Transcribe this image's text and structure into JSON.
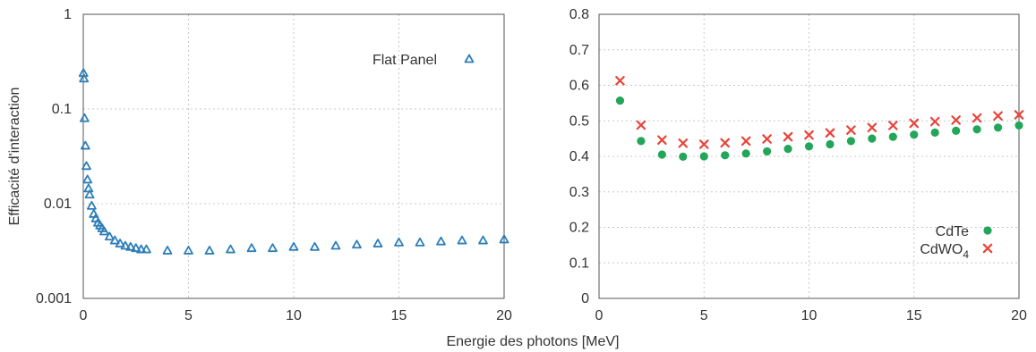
{
  "colors": {
    "flat_panel": "#2e7fb8",
    "cdte": "#23a55a",
    "cdwo4": "#e8443a"
  },
  "chart_data": [
    {
      "type": "scatter",
      "title": "",
      "xlabel": "Energie des photons [MeV]",
      "ylabel": "Efficacité d'interaction",
      "xlim": [
        0,
        20
      ],
      "ylim": [
        0.001,
        1
      ],
      "yscale": "log",
      "grid": true,
      "legend_position": "top-right",
      "x_ticks": [
        "0",
        "5",
        "10",
        "15",
        "20"
      ],
      "y_ticks": [
        "0.001",
        "0.01",
        "0.1",
        "1"
      ],
      "series": [
        {
          "name": "Flat Panel",
          "marker": "triangle",
          "x": [
            0.01,
            0.03,
            0.06,
            0.1,
            0.15,
            0.2,
            0.25,
            0.3,
            0.4,
            0.5,
            0.6,
            0.7,
            0.8,
            0.9,
            1,
            1.25,
            1.5,
            1.75,
            2,
            2.25,
            2.5,
            2.75,
            3,
            4,
            5,
            6,
            7,
            8,
            9,
            10,
            11,
            12,
            13,
            14,
            15,
            16,
            17,
            18,
            19,
            20
          ],
          "y": [
            0.24,
            0.21,
            0.08,
            0.041,
            0.025,
            0.018,
            0.0145,
            0.0125,
            0.0095,
            0.0078,
            0.007,
            0.0063,
            0.0059,
            0.0055,
            0.0051,
            0.0045,
            0.0041,
            0.0038,
            0.0036,
            0.0035,
            0.0034,
            0.0033,
            0.0033,
            0.0032,
            0.0032,
            0.0032,
            0.0033,
            0.0034,
            0.0034,
            0.0035,
            0.0035,
            0.0036,
            0.0037,
            0.0038,
            0.0039,
            0.0039,
            0.004,
            0.0041,
            0.0041,
            0.0042
          ]
        }
      ]
    },
    {
      "type": "scatter",
      "title": "",
      "xlabel": "Energie des photons [MeV]",
      "ylabel": "",
      "xlim": [
        0,
        20
      ],
      "ylim": [
        0,
        0.8
      ],
      "grid": true,
      "legend_position": "bottom-right",
      "x_ticks": [
        "0",
        "5",
        "10",
        "15",
        "20"
      ],
      "y_ticks": [
        "0",
        "0.1",
        "0.2",
        "0.3",
        "0.4",
        "0.5",
        "0.6",
        "0.7",
        "0.8"
      ],
      "series": [
        {
          "name": "CdTe",
          "marker": "circle",
          "x": [
            1,
            2,
            3,
            4,
            5,
            6,
            7,
            8,
            9,
            10,
            11,
            12,
            13,
            14,
            15,
            16,
            17,
            18,
            19,
            20
          ],
          "y": [
            0.557,
            0.443,
            0.405,
            0.399,
            0.4,
            0.403,
            0.408,
            0.414,
            0.421,
            0.428,
            0.434,
            0.443,
            0.45,
            0.455,
            0.461,
            0.467,
            0.472,
            0.476,
            0.481,
            0.487
          ]
        },
        {
          "name": "CdWO",
          "name_subscript": "4",
          "marker": "x",
          "x": [
            1,
            2,
            3,
            4,
            5,
            6,
            7,
            8,
            9,
            10,
            11,
            12,
            13,
            14,
            15,
            16,
            17,
            18,
            19,
            20
          ],
          "y": [
            0.613,
            0.488,
            0.446,
            0.437,
            0.434,
            0.438,
            0.443,
            0.449,
            0.455,
            0.46,
            0.466,
            0.474,
            0.481,
            0.487,
            0.493,
            0.498,
            0.502,
            0.508,
            0.514,
            0.517
          ]
        }
      ]
    }
  ]
}
